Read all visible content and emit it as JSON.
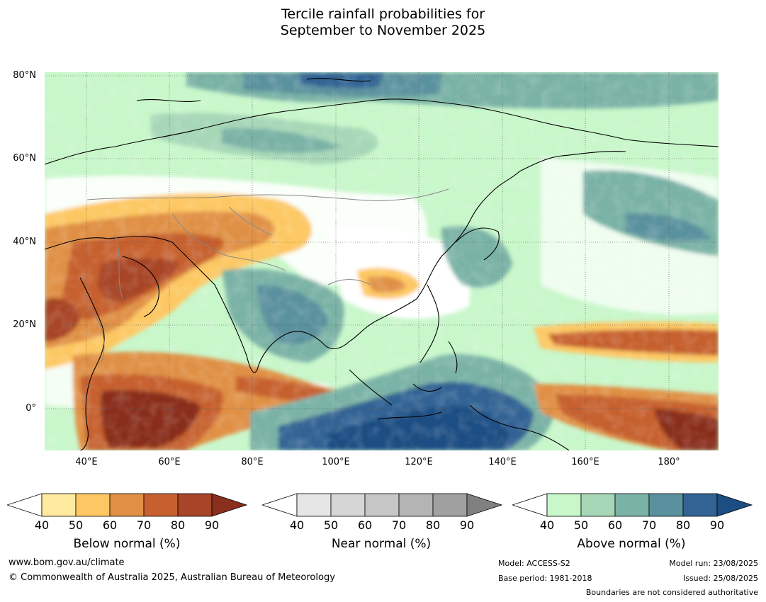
{
  "title_line1": "Tercile rainfall probabilities for",
  "title_line2": "September to November 2025",
  "map": {
    "lat_labels": [
      "80°N",
      "60°N",
      "40°N",
      "20°N",
      "0°"
    ],
    "lon_labels": [
      "40°E",
      "60°E",
      "80°E",
      "100°E",
      "120°E",
      "140°E",
      "160°E",
      "180°"
    ],
    "lon_range": [
      30,
      192
    ],
    "lat_range": [
      -10,
      81
    ]
  },
  "colorbars": [
    {
      "title": "Below normal (%)",
      "ticks": [
        "40",
        "50",
        "60",
        "70",
        "80",
        "90"
      ],
      "colors": [
        "#ffeaa0",
        "#fdc863",
        "#e09044",
        "#c6612f",
        "#a84427",
        "#8a2e1e"
      ]
    },
    {
      "title": "Near normal (%)",
      "ticks": [
        "40",
        "50",
        "60",
        "70",
        "80",
        "90"
      ],
      "colors": [
        "#e6e6e6",
        "#d6d6d6",
        "#c6c6c6",
        "#b4b4b4",
        "#a0a0a0",
        "#808080"
      ]
    },
    {
      "title": "Above normal (%)",
      "ticks": [
        "40",
        "50",
        "60",
        "70",
        "80",
        "90"
      ],
      "colors": [
        "#c8f7ca",
        "#a6d7b7",
        "#7ab2a6",
        "#5a919e",
        "#336394",
        "#1d4e83"
      ]
    }
  ],
  "footer": {
    "website": "www.bom.gov.au/climate",
    "copyright": "© Commonwealth of Australia 2025, Australian Bureau of Meteorology",
    "model": "Model: ACCESS-S2",
    "base_period": "Base period: 1981-2018",
    "model_run": "Model run: 23/08/2025",
    "issued": "Issued: 25/08/2025",
    "disclaimer": "Boundaries are not considered authoritative"
  }
}
